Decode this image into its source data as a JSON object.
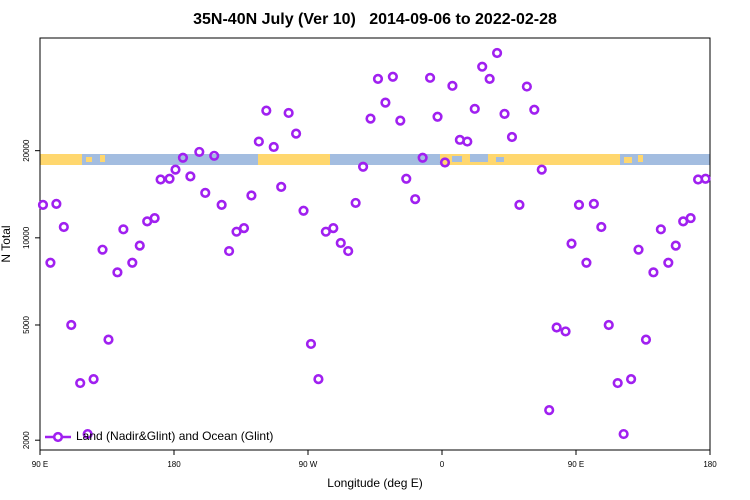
{
  "chart_data": {
    "type": "scatter",
    "title": "35N-40N July (Ver 10)   2014-09-06 to 2022-02-28",
    "x_label": "Longitude (deg E)",
    "y_label": "N Total",
    "log_y": true,
    "legend": "bottom-left",
    "xlim": [
      90,
      540
    ],
    "ylim": [
      1850,
      49000
    ],
    "xticks": [
      {
        "value": 90,
        "label": "90 E"
      },
      {
        "value": 180,
        "label": "180"
      },
      {
        "value": 270,
        "label": "90 W"
      },
      {
        "value": 360,
        "label": "0"
      },
      {
        "value": 450,
        "label": "90 E"
      },
      {
        "value": 540,
        "label": "180"
      }
    ],
    "yticks": [
      2000,
      5000,
      10000,
      20000
    ],
    "series": [
      {
        "name": "Land (Nadir&Glint) and Ocean (Glint)",
        "color": "#a020f0",
        "x": [
          92,
          97,
          101,
          106,
          111,
          117,
          122,
          126,
          132,
          136,
          142,
          146,
          152,
          157,
          162,
          167,
          171,
          177,
          181,
          186,
          191,
          197,
          201,
          207,
          212,
          217,
          222,
          227,
          232,
          237,
          242,
          247,
          252,
          257,
          262,
          267,
          272,
          277,
          282,
          287,
          292,
          297,
          302,
          307,
          312,
          317,
          322,
          327,
          332,
          336,
          342,
          347,
          352,
          357,
          362,
          367,
          372,
          377,
          382,
          387,
          392,
          397,
          402,
          407,
          412,
          417,
          422,
          427,
          432,
          437,
          443,
          447,
          452,
          457,
          462,
          467,
          472,
          478,
          482,
          487,
          492,
          497,
          502,
          507,
          512,
          517,
          522,
          527,
          532,
          537
        ],
        "values": [
          13000,
          8200,
          13100,
          10900,
          5000,
          3150,
          2100,
          3250,
          9100,
          4450,
          7600,
          10700,
          8200,
          9400,
          11400,
          11700,
          15900,
          16000,
          17200,
          18900,
          16300,
          19800,
          14300,
          19200,
          13000,
          9000,
          10500,
          10800,
          14000,
          21500,
          27500,
          20600,
          15000,
          27000,
          22900,
          12400,
          4300,
          3250,
          10500,
          10800,
          9600,
          9000,
          13200,
          17600,
          25800,
          35400,
          29300,
          36000,
          25400,
          16000,
          13600,
          18900,
          35700,
          26200,
          18200,
          33500,
          21800,
          21500,
          27900,
          39000,
          35400,
          43500,
          26800,
          22300,
          13000,
          33300,
          27700,
          17200,
          2540,
          4900,
          4750,
          9550,
          13000,
          8200,
          13100,
          10900,
          5000,
          3150,
          2100,
          3250,
          9100,
          4450,
          7600,
          10700,
          8200,
          9400,
          11400,
          11700,
          15900,
          16000
        ]
      }
    ]
  }
}
